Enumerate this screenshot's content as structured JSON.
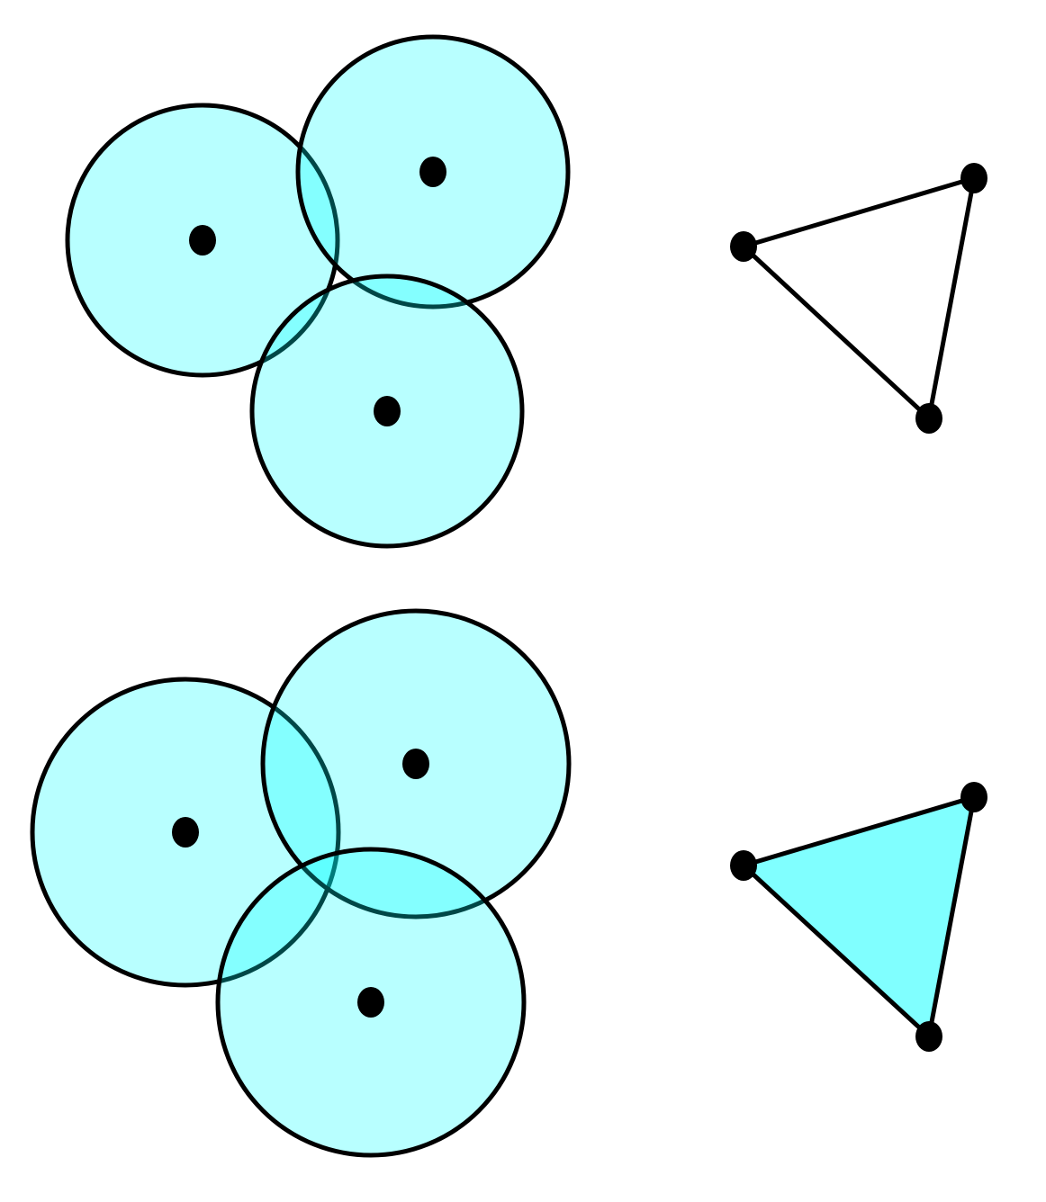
{
  "colors": {
    "disk_fill": "#00ffff",
    "disk_fill_opacity": 0.28,
    "outline": "#000000",
    "vertex": "#000000",
    "simplex_fill": "#80ffff",
    "background": "#ffffff"
  },
  "panels": [
    {
      "id": "top",
      "description_key": "disks-pairwise-overlap",
      "triangle_filled": false
    },
    {
      "id": "bottom",
      "description_key": "disks-triple-overlap",
      "triangle_filled": true
    }
  ]
}
